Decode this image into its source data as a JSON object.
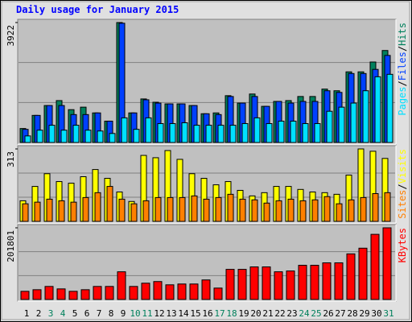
{
  "chart_data": [
    {
      "type": "bar",
      "title": "Daily usage for January 2015",
      "ylim": [
        0,
        3922
      ],
      "yticks": [
        3922
      ],
      "legend_separator": "/",
      "series": [
        {
          "name": "Hits",
          "color": "#00805c",
          "values": [
            457,
            886,
            1209,
            1370,
            1074,
            1155,
            967,
            698,
            3922,
            967,
            1424,
            1316,
            1262,
            1262,
            1209,
            940,
            967,
            1531,
            1289,
            1585,
            1182,
            1343,
            1370,
            1504,
            1504,
            1746,
            1692,
            2310,
            2310,
            2632,
            3008
          ]
        },
        {
          "name": "Files",
          "color": "#0040ff",
          "values": [
            430,
            886,
            1209,
            1209,
            913,
            913,
            967,
            698,
            3900,
            967,
            1397,
            1289,
            1262,
            1262,
            1209,
            940,
            913,
            1504,
            1289,
            1504,
            1182,
            1343,
            1289,
            1343,
            1343,
            1692,
            1638,
            2256,
            2256,
            2390,
            2847
          ]
        },
        {
          "name": "Pages",
          "color": "#00e0ff",
          "values": [
            215,
            403,
            564,
            403,
            564,
            403,
            376,
            295,
            806,
            430,
            806,
            618,
            618,
            645,
            564,
            564,
            564,
            564,
            618,
            806,
            618,
            698,
            698,
            618,
            618,
            1021,
            1155,
            1289,
            1692,
            2149,
            2229
          ]
        }
      ]
    },
    {
      "type": "bar",
      "ylim": [
        0,
        313
      ],
      "yticks": [
        313
      ],
      "legend_separator": "/",
      "series": [
        {
          "name": "Visits",
          "color": "#ffff00",
          "values": [
            89,
            151,
            206,
            172,
            165,
            193,
            224,
            186,
            127,
            86,
            285,
            275,
            306,
            268,
            206,
            186,
            158,
            172,
            134,
            110,
            124,
            151,
            151,
            138,
            127,
            124,
            117,
            200,
            313,
            303,
            272
          ]
        },
        {
          "name": "Sites",
          "color": "#ff8000",
          "values": [
            76,
            83,
            96,
            89,
            83,
            103,
            124,
            151,
            96,
            76,
            89,
            103,
            103,
            103,
            110,
            96,
            103,
            117,
            96,
            93,
            79,
            89,
            96,
            89,
            93,
            107,
            76,
            93,
            103,
            120,
            124
          ]
        }
      ]
    },
    {
      "type": "bar",
      "ylim": [
        0,
        201801
      ],
      "yticks": [
        201801
      ],
      "categories": [
        "1",
        "2",
        "3",
        "4",
        "5",
        "6",
        "7",
        "8",
        "9",
        "10",
        "11",
        "12",
        "13",
        "14",
        "15",
        "16",
        "17",
        "18",
        "19",
        "20",
        "21",
        "22",
        "23",
        "24",
        "25",
        "26",
        "27",
        "28",
        "29",
        "30",
        "31"
      ],
      "category_colors": [
        "#000000",
        "#000000",
        "#00805c",
        "#00805c",
        "#000000",
        "#000000",
        "#000000",
        "#000000",
        "#000000",
        "#00805c",
        "#00805c",
        "#000000",
        "#000000",
        "#000000",
        "#000000",
        "#000000",
        "#00805c",
        "#00805c",
        "#000000",
        "#000000",
        "#000000",
        "#000000",
        "#000000",
        "#00805c",
        "#00805c",
        "#000000",
        "#000000",
        "#000000",
        "#000000",
        "#000000",
        "#00805c"
      ],
      "series": [
        {
          "name": "KBytes",
          "color": "#ff0000",
          "values": [
            22930,
            27516,
            36688,
            29809,
            22930,
            27516,
            36688,
            36688,
            77962,
            36688,
            45860,
            50446,
            41274,
            43567,
            43567,
            55032,
            32102,
            84841,
            84841,
            91720,
            91720,
            77962,
            80255,
            96306,
            96306,
            103185,
            103185,
            128408,
            144459,
            183440,
            201801
          ]
        }
      ]
    }
  ]
}
